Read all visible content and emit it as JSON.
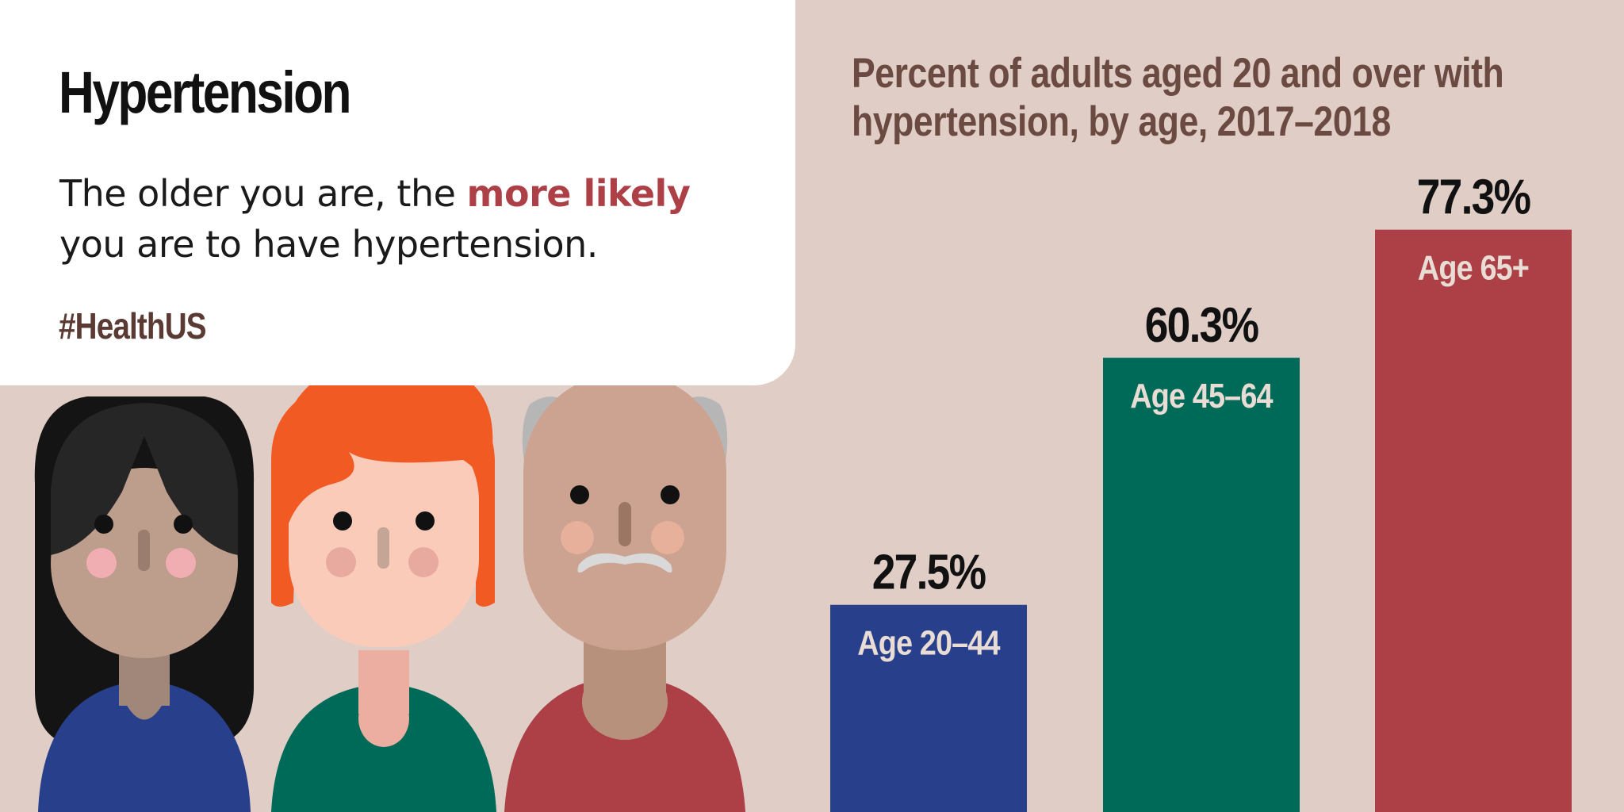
{
  "headline": {
    "title": "Hypertension",
    "body_line1_before": "The older you are, the ",
    "body_line1_emphasis": "more likely",
    "body_line2": "you are to have hypertension.",
    "hashtag": "#HealthUS"
  },
  "chart_data": {
    "type": "bar",
    "title_lines": [
      "Percent of adults aged 20 and over with",
      "hypertension, by age, 2017–2018"
    ],
    "categories": [
      "Age 20–44",
      "Age 45–64",
      "Age 65+"
    ],
    "values": [
      27.5,
      60.3,
      77.3
    ],
    "value_labels": [
      "27.5%",
      "60.3%",
      "77.3%"
    ],
    "colors": [
      "#283f8b",
      "#006a59",
      "#ac4046"
    ],
    "ylim": [
      0,
      100
    ],
    "grid": false,
    "legend": "none"
  },
  "colors": {
    "background": "#e0cec6",
    "card": "#ffffff",
    "accent": "#ac4046",
    "title_brown": "#6a4a41",
    "category_label": "#e8dcd4"
  },
  "illustration": {
    "people": [
      "woman-black-hair",
      "man-red-hair",
      "older-man-bald"
    ]
  }
}
